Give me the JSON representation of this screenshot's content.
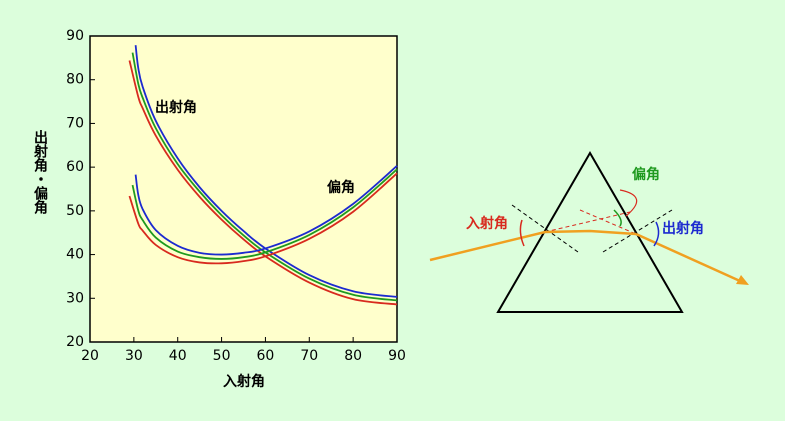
{
  "chart_data": {
    "type": "line",
    "xlabel": "入射角",
    "ylabel": "出射角・偏角",
    "xlim": [
      20,
      90
    ],
    "ylim": [
      20,
      90
    ],
    "xticks": [
      20,
      30,
      40,
      50,
      60,
      70,
      80,
      90
    ],
    "yticks": [
      20,
      30,
      40,
      50,
      60,
      70,
      80,
      90
    ],
    "annotations": [
      "出射角",
      "偏角"
    ],
    "series": [
      {
        "color": "#d82a1e",
        "x": [
          29,
          31,
          32,
          35,
          40,
          45,
          50,
          55,
          60,
          70,
          80,
          90
        ],
        "values": [
          84.4,
          76.1,
          73.5,
          67.2,
          59.4,
          53.2,
          48.0,
          43.5,
          39.6,
          33.6,
          29.8,
          28.6
        ]
      },
      {
        "color": "#1f9a1f",
        "x": [
          29.7,
          31,
          32,
          35,
          40,
          45,
          50,
          55,
          60,
          70,
          80,
          90
        ],
        "values": [
          86.2,
          79.1,
          75.9,
          68.9,
          60.7,
          54.4,
          49.0,
          44.4,
          40.5,
          34.5,
          30.8,
          29.5
        ]
      },
      {
        "color": "#1c2ad0",
        "x": [
          30.4,
          31,
          32,
          35,
          40,
          45,
          50,
          55,
          60,
          70,
          80,
          90
        ],
        "values": [
          87.9,
          82.7,
          78.4,
          70.6,
          62.0,
          55.4,
          50.0,
          45.4,
          41.4,
          35.3,
          31.6,
          30.3
        ]
      },
      {
        "color": "#d82a1e",
        "x": [
          29,
          31,
          32,
          35,
          40,
          45,
          50,
          55,
          60,
          70,
          80,
          90
        ],
        "values": [
          53.4,
          47.1,
          45.5,
          42.2,
          39.4,
          38.2,
          38.0,
          38.5,
          39.6,
          43.6,
          49.8,
          58.6
        ]
      },
      {
        "color": "#1f9a1f",
        "x": [
          29.7,
          31,
          32,
          35,
          40,
          45,
          50,
          55,
          60,
          70,
          80,
          90
        ],
        "values": [
          55.9,
          50.1,
          47.9,
          43.9,
          40.7,
          39.4,
          39.0,
          39.4,
          40.5,
          44.5,
          50.8,
          59.5
        ]
      },
      {
        "color": "#1c2ad0",
        "x": [
          30.4,
          31,
          32,
          35,
          40,
          45,
          50,
          55,
          60,
          70,
          80,
          90
        ],
        "values": [
          58.3,
          53.7,
          50.4,
          45.6,
          42.0,
          40.4,
          40.0,
          40.4,
          41.4,
          45.3,
          51.6,
          60.3
        ]
      }
    ]
  },
  "diagram": {
    "labels": [
      "入射角",
      "偏角",
      "出射角"
    ]
  }
}
